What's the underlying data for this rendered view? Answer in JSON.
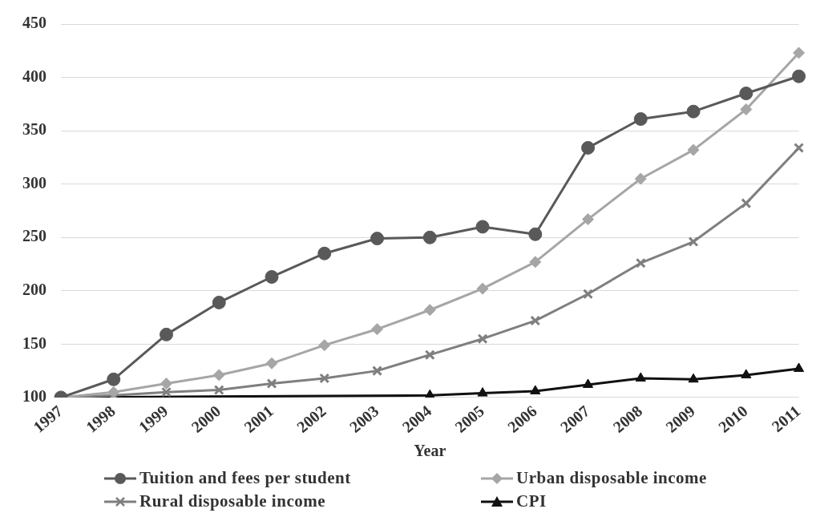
{
  "chart_data": {
    "type": "line",
    "xlabel": "Year",
    "categories": [
      "1997",
      "1998",
      "1999",
      "2000",
      "2001",
      "2002",
      "2003",
      "2004",
      "2005",
      "2006",
      "2007",
      "2008",
      "2009",
      "2010",
      "2011"
    ],
    "series": [
      {
        "name": "Tuition and fees per student",
        "color": "#595959",
        "marker": "circle",
        "values": [
          100,
          117,
          159,
          189,
          213,
          235,
          249,
          250,
          260,
          253,
          334,
          361,
          368,
          385,
          401
        ]
      },
      {
        "name": "Urban disposable income",
        "color": "#a6a6a6",
        "marker": "diamond",
        "values": [
          100,
          105,
          113,
          121,
          132,
          149,
          164,
          182,
          202,
          227,
          267,
          305,
          332,
          370,
          423
        ]
      },
      {
        "name": "Rural disposable income",
        "color": "#7f7f7f",
        "marker": "cross",
        "values": [
          100,
          102,
          105,
          107,
          113,
          118,
          125,
          140,
          155,
          172,
          197,
          226,
          246,
          282,
          334
        ]
      },
      {
        "name": "CPI",
        "color": "#111111",
        "marker": "triangle",
        "values": [
          100,
          null,
          null,
          null,
          null,
          null,
          null,
          102,
          104,
          106,
          112,
          118,
          117,
          121,
          127
        ]
      }
    ],
    "ylim": [
      100,
      450
    ],
    "yticks": [
      100,
      150,
      200,
      250,
      300,
      350,
      400,
      450
    ],
    "grid": "y",
    "legend": "bottom"
  }
}
